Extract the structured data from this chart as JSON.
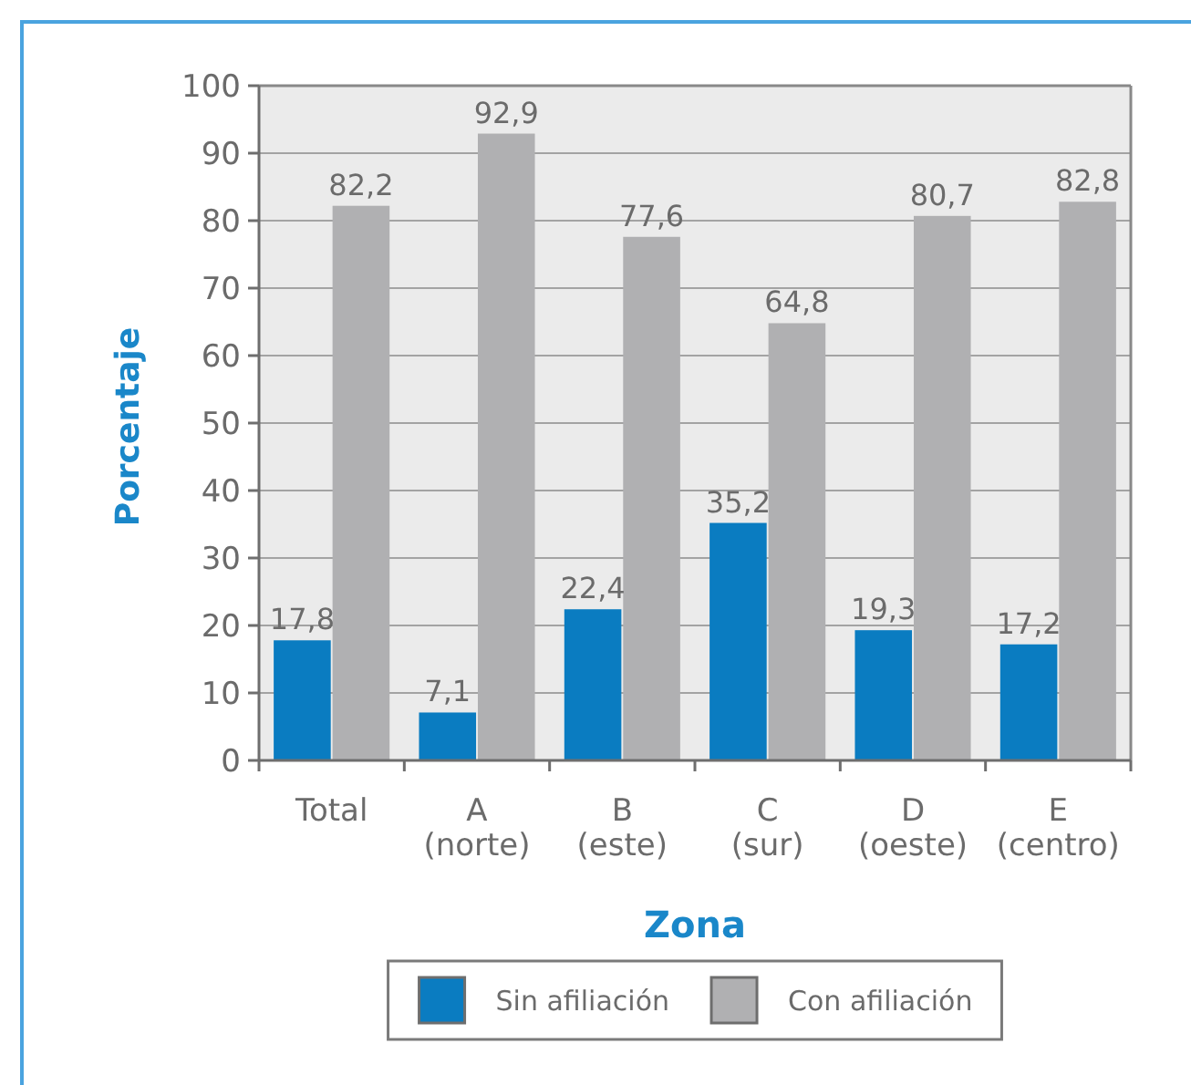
{
  "chart_data": {
    "type": "bar",
    "xlabel": "Zona",
    "ylabel": "Porcentaje",
    "categories": [
      "Total",
      "A (norte)",
      "B (este)",
      "C (sur)",
      "D (oeste)",
      "E (centro)"
    ],
    "series": [
      {
        "name": "Sin afiliación",
        "color": "#0a7cc1",
        "values": [
          17.8,
          7.1,
          22.4,
          35.2,
          19.3,
          17.2
        ],
        "value_labels": [
          "17,8",
          "7,1",
          "22,4",
          "35,2",
          "19,3",
          "17,2"
        ]
      },
      {
        "name": "Con afiliación",
        "color": "#b0b0b2",
        "values": [
          82.2,
          92.9,
          77.6,
          64.8,
          80.7,
          82.8
        ],
        "value_labels": [
          "82,2",
          "92,9",
          "77,6",
          "64,8",
          "80,7",
          "82,8"
        ]
      }
    ],
    "ylim": [
      0,
      100
    ],
    "yticks": [
      0,
      10,
      20,
      30,
      40,
      50,
      60,
      70,
      80,
      90,
      100
    ],
    "grid": "y",
    "legend": "bottom"
  }
}
